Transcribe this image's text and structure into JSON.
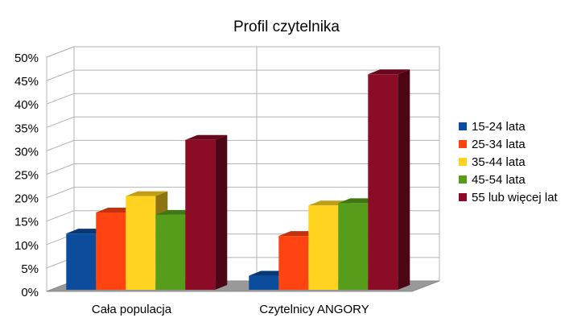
{
  "chart_data": {
    "type": "bar",
    "title": "Profil czytelnika",
    "categories": [
      "Cała populacja",
      "Czytelnicy ANGORY"
    ],
    "ylim": [
      0,
      50
    ],
    "yticks": [
      "0%",
      "5%",
      "10%",
      "15%",
      "20%",
      "25%",
      "30%",
      "35%",
      "40%",
      "45%",
      "50%"
    ],
    "grid": true,
    "legend_position": "right",
    "series": [
      {
        "name": "15-24 lata",
        "color": "#0b4c9c",
        "values": [
          12,
          3
        ]
      },
      {
        "name": "25-34 lata",
        "color": "#ff4412",
        "values": [
          16.5,
          11.5
        ]
      },
      {
        "name": "35-44 lata",
        "color": "#ffd320",
        "values": [
          20,
          18
        ]
      },
      {
        "name": "45-54 lata",
        "color": "#579d1c",
        "values": [
          16,
          18.5
        ]
      },
      {
        "name": "55 lub więcej lat",
        "color": "#8c0b26",
        "values": [
          32,
          46
        ]
      }
    ]
  }
}
